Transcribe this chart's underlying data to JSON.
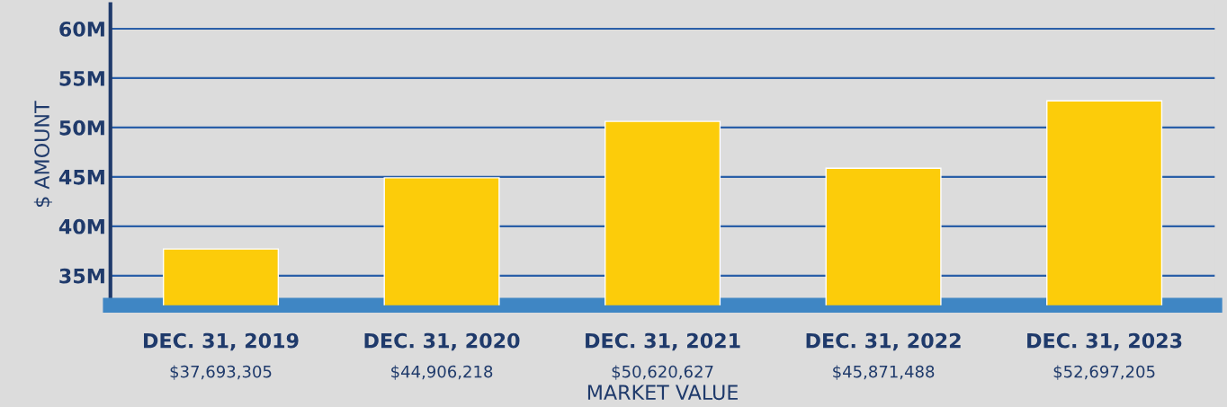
{
  "chart_data": {
    "type": "bar",
    "xlabel": "MARKET VALUE",
    "ylabel": "$ AMOUNT",
    "categories": [
      "DEC. 31, 2019",
      "DEC. 31, 2020",
      "DEC. 31, 2021",
      "DEC. 31, 2022",
      "DEC. 31, 2023"
    ],
    "values": [
      37693305,
      44906218,
      50620627,
      45871488,
      52697205
    ],
    "value_labels": [
      "$37,693,305",
      "$44,906,218",
      "$50,620,627",
      "$45,871,488",
      "$52,697,205"
    ],
    "color": "#fccc0a",
    "ylim": [
      32000000,
      62500000
    ],
    "yticks": [
      {
        "value": 35000000,
        "label": "35M"
      },
      {
        "value": 40000000,
        "label": "40M"
      },
      {
        "value": 45000000,
        "label": "45M"
      },
      {
        "value": 50000000,
        "label": "50M"
      },
      {
        "value": 55000000,
        "label": "55M"
      },
      {
        "value": 60000000,
        "label": "60M"
      }
    ],
    "grid": "y"
  }
}
